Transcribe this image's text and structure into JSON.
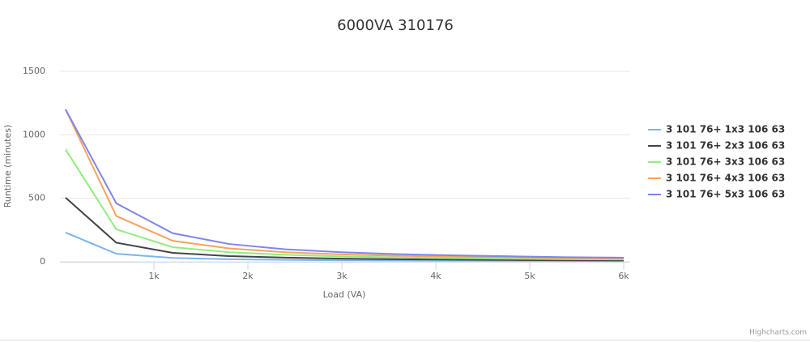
{
  "chart_data": {
    "type": "line",
    "title": "6000VA 310176",
    "x_label": "Load (VA)",
    "y_label": "Runtime (minutes)",
    "x": [
      60,
      600,
      1200,
      1800,
      2400,
      3000,
      3600,
      4200,
      4800,
      5400,
      6000
    ],
    "series": [
      {
        "name": "3 101 76+ 1x3 106 63",
        "color": "#7cb5ec",
        "values": [
          230,
          63,
          30,
          20,
          15,
          12,
          10,
          9,
          8,
          7,
          7
        ]
      },
      {
        "name": "3 101 76+ 2x3 106 63",
        "color": "#434348",
        "values": [
          505,
          150,
          70,
          45,
          33,
          25,
          20,
          17,
          14,
          12,
          10
        ]
      },
      {
        "name": "3 101 76+ 3x3 106 63",
        "color": "#90ed7d",
        "values": [
          885,
          255,
          115,
          75,
          55,
          42,
          34,
          28,
          24,
          20,
          18
        ]
      },
      {
        "name": "3 101 76+ 4x3 106 63",
        "color": "#f7a35c",
        "values": [
          1200,
          360,
          165,
          105,
          75,
          58,
          47,
          40,
          34,
          29,
          26
        ]
      },
      {
        "name": "3 101 76+ 5x3 106 63",
        "color": "#8085e9",
        "values": [
          1200,
          460,
          225,
          140,
          98,
          75,
          60,
          50,
          43,
          36,
          32
        ]
      }
    ],
    "xlim": [
      0,
      6000
    ],
    "xticks": [
      {
        "value": 1000,
        "label": "1k"
      },
      {
        "value": 2000,
        "label": "2k"
      },
      {
        "value": 3000,
        "label": "3k"
      },
      {
        "value": 4000,
        "label": "4k"
      },
      {
        "value": 5000,
        "label": "5k"
      },
      {
        "value": 6000,
        "label": "6k"
      }
    ],
    "ylim": [
      0,
      1500
    ],
    "yticks": [
      0,
      500,
      1000,
      1500
    ],
    "grid": true,
    "legend": "right",
    "credits": "Highcharts.com"
  }
}
